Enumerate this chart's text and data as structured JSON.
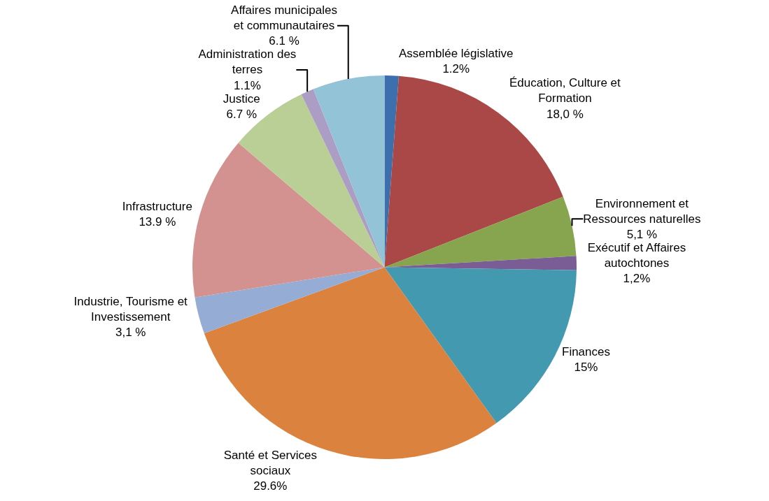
{
  "chart_data": {
    "type": "pie",
    "categories": [
      "Assemblée législative",
      "Éducation, Culture et Formation",
      "Environnement et Ressources naturelles",
      "Exécutif et Affaires autochtones",
      "Finances",
      "Santé et Services sociaux",
      "Industrie, Tourisme et Investissement",
      "Infrastructure",
      "Justice",
      "Administration des terres",
      "Affaires municipales et communautaires"
    ],
    "values": [
      1.2,
      18.0,
      5.1,
      1.2,
      15,
      29.6,
      3.1,
      13.9,
      6.7,
      1.1,
      6.1
    ],
    "value_labels": [
      "1.2%",
      "18,0 %",
      "5,1 %",
      "1,2%",
      "15%",
      "29.6%",
      "3,1 %",
      "13.9 %",
      "6.7 %",
      "1.1%",
      "6.1 %"
    ],
    "colors": [
      "#3e6fad",
      "#a94846",
      "#87a54f",
      "#7b5d96",
      "#4299b0",
      "#db833e",
      "#95acd4",
      "#d39290",
      "#b9cf96",
      "#ab9dc3",
      "#93c3d6"
    ],
    "legend": false
  }
}
